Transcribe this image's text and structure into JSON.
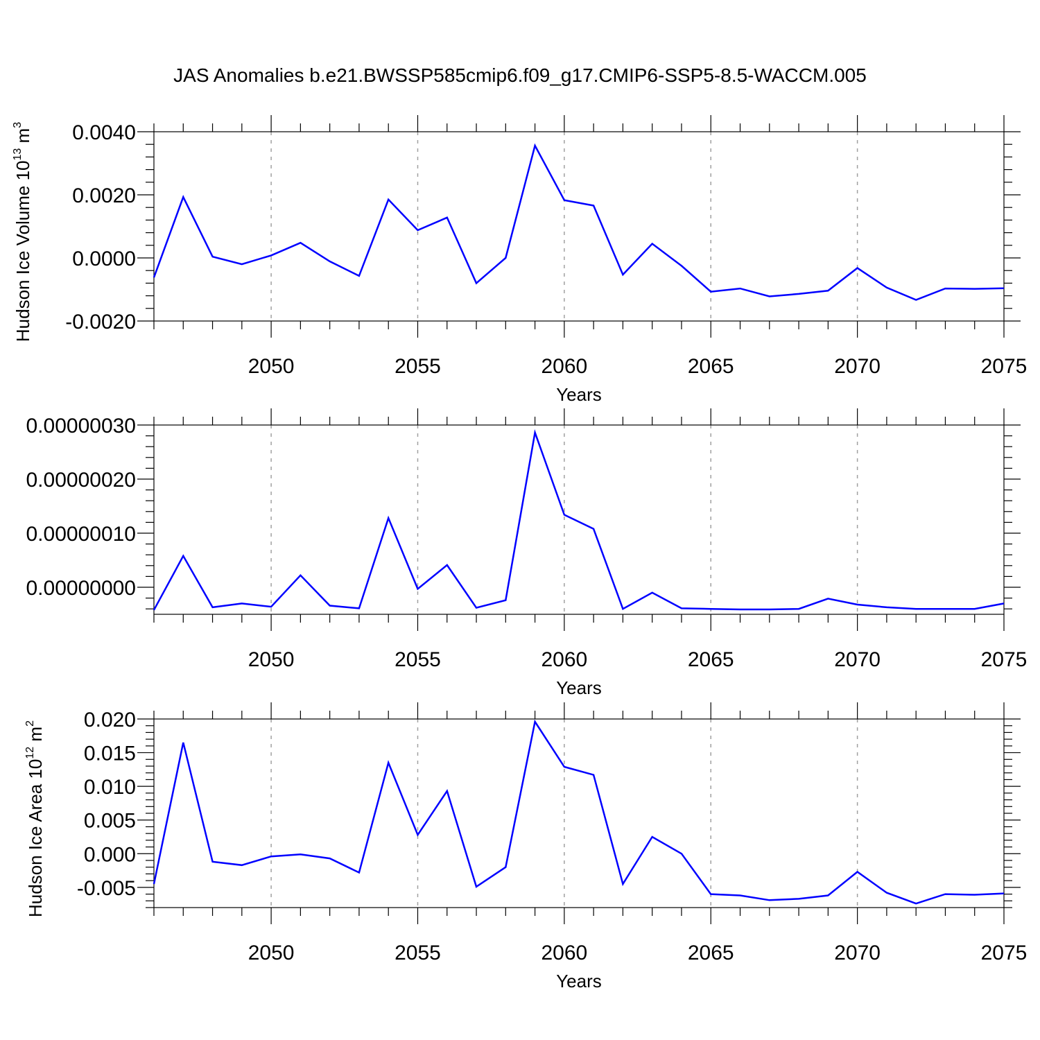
{
  "title": "JAS Anomalies b.e21.BWSSP585cmip6.f09_g17.CMIP6-SSP5-8.5-WACCM.005",
  "line_color": "#0000ff",
  "chart_data": [
    {
      "type": "line",
      "ylabel": "Hudson Ice Volume 10",
      "ylabel_exp": "13",
      "ylabel_unit": " m",
      "ylabel_unit_exp": "3",
      "xlabel": "Years",
      "xlim": [
        2046,
        2075
      ],
      "ylim": [
        -0.002,
        0.004
      ],
      "yticks": [
        -0.002,
        0.0,
        0.002,
        0.004
      ],
      "ytick_labels": [
        "-0.0020",
        "0.0000",
        "0.0020",
        "0.0040"
      ],
      "xticks": [
        2050,
        2055,
        2060,
        2065,
        2070,
        2075
      ],
      "xtick_labels": [
        "2050",
        "2055",
        "2060",
        "2065",
        "2070",
        "2075"
      ],
      "x": [
        2046,
        2047,
        2048,
        2049,
        2050,
        2051,
        2052,
        2053,
        2054,
        2055,
        2056,
        2057,
        2058,
        2059,
        2060,
        2061,
        2062,
        2063,
        2064,
        2065,
        2066,
        2067,
        2068,
        2069,
        2070,
        2071,
        2072,
        2073,
        2074,
        2075
      ],
      "values": [
        -0.00062,
        0.00193,
        4e-05,
        -0.0002,
        8e-05,
        0.00048,
        -0.00011,
        -0.00057,
        0.00185,
        0.00088,
        0.00128,
        -0.0008,
        0.0,
        0.00356,
        0.00183,
        0.00166,
        -0.00053,
        0.00045,
        -0.00025,
        -0.00107,
        -0.00097,
        -0.00122,
        -0.00114,
        -0.00104,
        -0.00032,
        -0.00094,
        -0.00133,
        -0.00097,
        -0.00098,
        -0.00096
      ]
    },
    {
      "type": "line",
      "ylabel": "",
      "xlabel": "Years",
      "xlim": [
        2046,
        2075
      ],
      "ylim": [
        -5e-08,
        3e-07
      ],
      "yticks": [
        0.0,
        1e-07,
        2e-07,
        3e-07
      ],
      "ytick_labels": [
        "0.00000000",
        "0.00000010",
        "0.00000020",
        "0.00000030"
      ],
      "xticks": [
        2050,
        2055,
        2060,
        2065,
        2070,
        2075
      ],
      "xtick_labels": [
        "2050",
        "2055",
        "2060",
        "2065",
        "2070",
        "2075"
      ],
      "x": [
        2046,
        2047,
        2048,
        2049,
        2050,
        2051,
        2052,
        2053,
        2054,
        2055,
        2056,
        2057,
        2058,
        2059,
        2060,
        2061,
        2062,
        2063,
        2064,
        2065,
        2066,
        2067,
        2068,
        2069,
        2070,
        2071,
        2072,
        2073,
        2074,
        2075
      ],
      "values": [
        -4.2e-08,
        5.8e-08,
        -3.7e-08,
        -3e-08,
        -3.6e-08,
        2.2e-08,
        -3.4e-08,
        -3.9e-08,
        1.28e-07,
        -3e-09,
        4.1e-08,
        -3.8e-08,
        -2.4e-08,
        2.86e-07,
        1.34e-07,
        1.08e-07,
        -4e-08,
        -1e-08,
        -3.9e-08,
        -4e-08,
        -4.1e-08,
        -4.1e-08,
        -4e-08,
        -2.1e-08,
        -3.2e-08,
        -3.7e-08,
        -4e-08,
        -4e-08,
        -4e-08,
        -3e-08
      ]
    },
    {
      "type": "line",
      "ylabel": "Hudson Ice Area 10",
      "ylabel_exp": "12",
      "ylabel_unit": " m",
      "ylabel_unit_exp": "2",
      "xlabel": "Years",
      "xlim": [
        2046,
        2075
      ],
      "ylim": [
        -0.008,
        0.02
      ],
      "yticks": [
        -0.005,
        0.0,
        0.005,
        0.01,
        0.015,
        0.02
      ],
      "ytick_labels": [
        "-0.005",
        "0.000",
        "0.005",
        "0.010",
        "0.015",
        "0.020"
      ],
      "xticks": [
        2050,
        2055,
        2060,
        2065,
        2070,
        2075
      ],
      "xtick_labels": [
        "2050",
        "2055",
        "2060",
        "2065",
        "2070",
        "2075"
      ],
      "x": [
        2046,
        2047,
        2048,
        2049,
        2050,
        2051,
        2052,
        2053,
        2054,
        2055,
        2056,
        2057,
        2058,
        2059,
        2060,
        2061,
        2062,
        2063,
        2064,
        2065,
        2066,
        2067,
        2068,
        2069,
        2070,
        2071,
        2072,
        2073,
        2074,
        2075
      ],
      "values": [
        -0.0045,
        0.0165,
        -0.0012,
        -0.0017,
        -0.0004,
        -0.0001,
        -0.0007,
        -0.0028,
        0.0135,
        0.0028,
        0.0093,
        -0.0049,
        -0.002,
        0.0196,
        0.0129,
        0.0117,
        -0.0045,
        0.0025,
        0.0,
        -0.006,
        -0.0062,
        -0.0069,
        -0.0067,
        -0.0062,
        -0.0027,
        -0.0058,
        -0.0074,
        -0.006,
        -0.0061,
        -0.0059
      ]
    }
  ]
}
